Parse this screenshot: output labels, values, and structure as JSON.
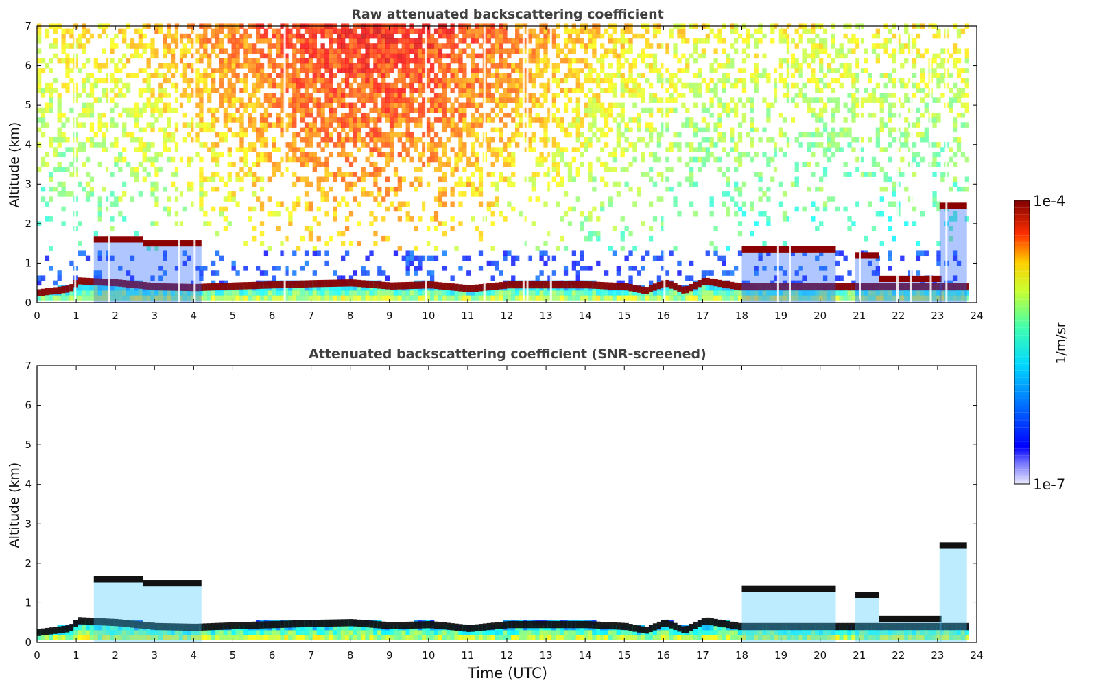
{
  "chart_data": [
    {
      "type": "heatmap",
      "title": "Raw attenuated backscattering coefficient",
      "xlabel": "",
      "ylabel": "Altitude (km)",
      "xlim": [
        0,
        24
      ],
      "ylim": [
        0,
        7
      ],
      "x_ticks": [
        "0",
        "1",
        "2",
        "3",
        "4",
        "5",
        "6",
        "7",
        "8",
        "9",
        "10",
        "11",
        "12",
        "13",
        "14",
        "15",
        "16",
        "17",
        "18",
        "19",
        "20",
        "21",
        "22",
        "23",
        "24"
      ],
      "y_ticks": [
        "0",
        "1",
        "2",
        "3",
        "4",
        "5",
        "6",
        "7"
      ],
      "data_end_hour": 23.8,
      "boundary_layer_top_km": [
        [
          0,
          0.25
        ],
        [
          0.8,
          0.35
        ],
        [
          1,
          0.55
        ],
        [
          2,
          0.5
        ],
        [
          3,
          0.4
        ],
        [
          4,
          0.38
        ],
        [
          5,
          0.42
        ],
        [
          6,
          0.45
        ],
        [
          7,
          0.48
        ],
        [
          8,
          0.5
        ],
        [
          9,
          0.42
        ],
        [
          10,
          0.45
        ],
        [
          11,
          0.35
        ],
        [
          12,
          0.45
        ],
        [
          13,
          0.45
        ],
        [
          14,
          0.45
        ],
        [
          15,
          0.4
        ],
        [
          15.5,
          0.3
        ],
        [
          16,
          0.5
        ],
        [
          16.5,
          0.3
        ],
        [
          17,
          0.55
        ],
        [
          17.9,
          0.4
        ]
      ],
      "cloud_layers": [
        {
          "start_h": 1.45,
          "end_h": 2.7,
          "alt_km": 1.6
        },
        {
          "start_h": 2.7,
          "end_h": 4.2,
          "alt_km": 1.5
        },
        {
          "start_h": 18.0,
          "end_h": 20.4,
          "alt_km": 1.35
        },
        {
          "start_h": 20.9,
          "end_h": 21.5,
          "alt_km": 1.2
        },
        {
          "start_h": 21.5,
          "end_h": 23.1,
          "alt_km": 0.6
        },
        {
          "start_h": 23.05,
          "end_h": 23.75,
          "alt_km": 2.45
        }
      ],
      "noise_gaps_h": [
        0.95,
        1.82,
        3.6,
        4.0,
        6.3,
        9.9,
        11.4,
        12.4,
        12.5,
        13.1,
        16.0,
        18.9,
        19.2,
        21.0,
        21.95,
        22.3,
        22.8,
        23.2
      ]
    },
    {
      "type": "heatmap",
      "title": "Attenuated backscattering coefficient (SNR-screened)",
      "xlabel": "Time (UTC)",
      "ylabel": "Altitude (km)",
      "xlim": [
        0,
        24
      ],
      "ylim": [
        0,
        7
      ],
      "x_ticks": [
        "0",
        "1",
        "2",
        "3",
        "4",
        "5",
        "6",
        "7",
        "8",
        "9",
        "10",
        "11",
        "12",
        "13",
        "14",
        "15",
        "16",
        "17",
        "18",
        "19",
        "20",
        "21",
        "22",
        "23",
        "24"
      ],
      "y_ticks": [
        "0",
        "1",
        "2",
        "3",
        "4",
        "5",
        "6",
        "7"
      ],
      "data_end_hour": 23.8
    }
  ],
  "colorbar": {
    "label": "1/m/sr",
    "max_label": "1e-4",
    "min_label": "1e-7",
    "scale": "log"
  }
}
